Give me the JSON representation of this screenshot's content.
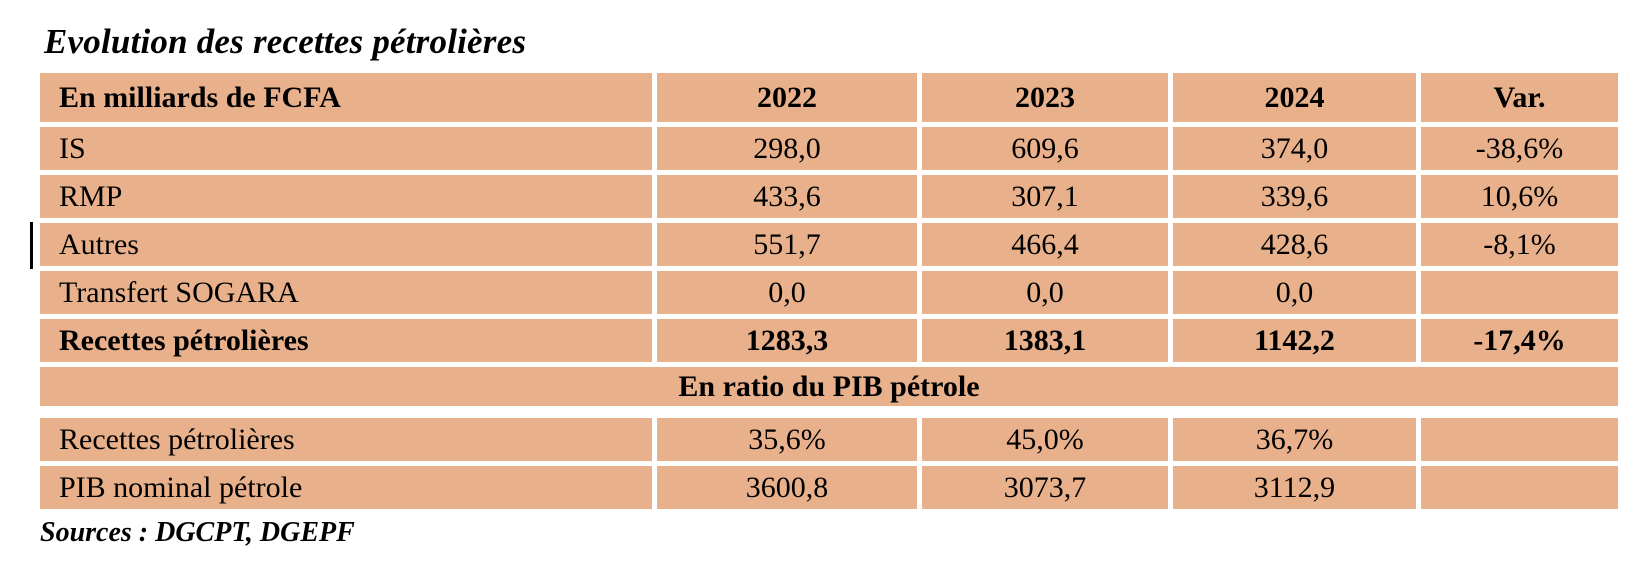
{
  "page": {
    "title": "Evolution des recettes pétrolières",
    "sources": "Sources : DGCPT, DGEPF"
  },
  "table": {
    "unit_header": "En milliards de FCFA",
    "columns": [
      "2022",
      "2023",
      "2024",
      "Var."
    ],
    "rows": [
      {
        "label": "IS",
        "values": [
          "298,0",
          "609,6",
          "374,0",
          "-38,6%"
        ]
      },
      {
        "label": "RMP",
        "values": [
          "433,6",
          "307,1",
          "339,6",
          "10,6%"
        ]
      },
      {
        "label": "Autres",
        "values": [
          "551,7",
          "466,4",
          "428,6",
          "-8,1%"
        ]
      },
      {
        "label": "Transfert SOGARA",
        "values": [
          "0,0",
          "0,0",
          "0,0",
          ""
        ]
      },
      {
        "label": "Recettes pétrolières",
        "values": [
          "1283,3",
          "1383,1",
          "1142,2",
          "-17,4%"
        ]
      }
    ],
    "section_header": "En ratio du PIB pétrole",
    "ratio_rows": [
      {
        "label": "Recettes pétrolières",
        "values": [
          "35,6%",
          "45,0%",
          "36,7%",
          ""
        ]
      },
      {
        "label": "PIB nominal pétrole",
        "values": [
          "3600,8",
          "3073,7",
          "3112,9",
          ""
        ]
      }
    ],
    "colors": {
      "cell_background": "#E8B18B",
      "text": "#000000",
      "grid_gap": "#FFFFFF"
    }
  }
}
